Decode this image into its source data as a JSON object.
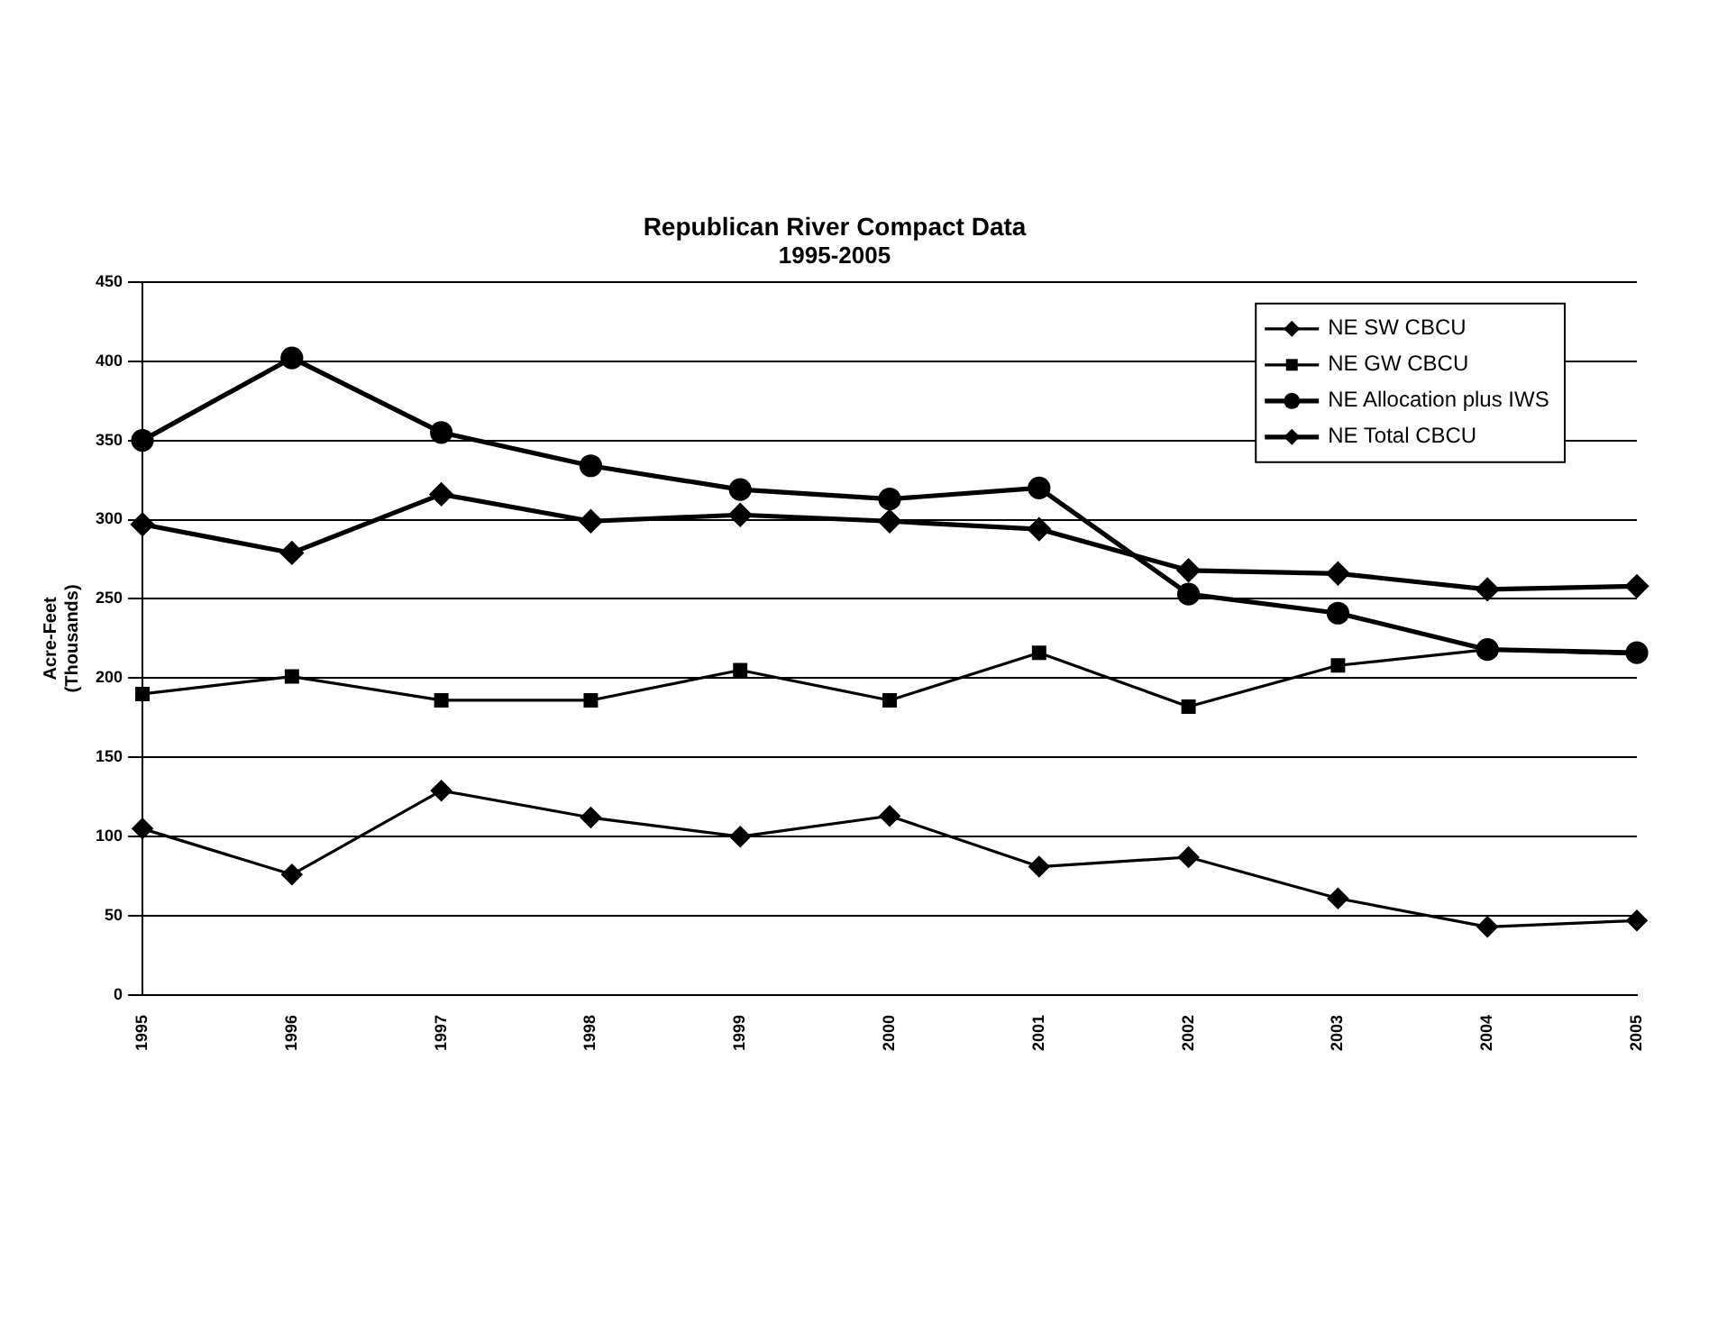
{
  "chart_data": {
    "type": "line",
    "title": "Republican River Compact Data",
    "subtitle": "1995-2005",
    "ylabel": "Acre-Feet\n(Thousands)",
    "categories": [
      "1995",
      "1996",
      "1997",
      "1998",
      "1999",
      "2000",
      "2001",
      "2002",
      "2003",
      "2004",
      "2005"
    ],
    "series": [
      {
        "name": "NE SW CBCU",
        "color": "#000000",
        "marker": "diamond",
        "values": [
          105,
          76,
          129,
          112,
          100,
          113,
          81,
          87,
          61,
          43,
          47
        ]
      },
      {
        "name": "NE GW CBCU",
        "color": "#000000",
        "marker": "square",
        "values": [
          190,
          201,
          186,
          186,
          205,
          186,
          216,
          182,
          208,
          218,
          215
        ]
      },
      {
        "name": "NE Allocation plus IWS",
        "color": "#000000",
        "marker": "circle",
        "values": [
          350,
          402,
          355,
          334,
          319,
          313,
          320,
          253,
          241,
          218,
          216
        ]
      },
      {
        "name": "NE Total CBCU",
        "color": "#000000",
        "marker": "diamond",
        "values": [
          297,
          279,
          316,
          299,
          303,
          299,
          294,
          268,
          266,
          256,
          258
        ]
      }
    ],
    "ylim": [
      0,
      450
    ],
    "yticks": [
      0,
      50,
      100,
      150,
      200,
      250,
      300,
      350,
      400,
      450
    ],
    "grid": "y",
    "legend": "top right",
    "line_style": "solid"
  }
}
